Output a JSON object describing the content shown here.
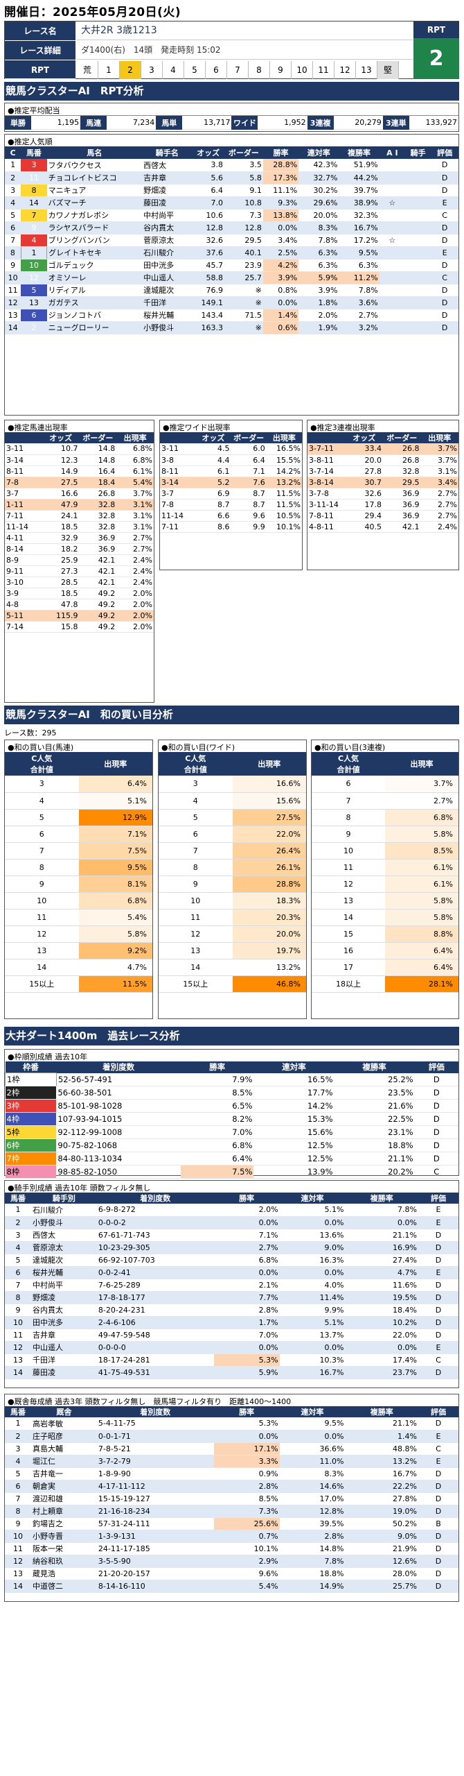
{
  "header": {
    "date": "開催日：2025年05月20日(火)"
  },
  "race": {
    "labels": [
      "レース名",
      "レース詳細",
      "RPT"
    ],
    "name": "大井2R 3歳1213",
    "detail": "ダ1400(右)　14頭　発走時刻 15:02",
    "cells": [
      "荒",
      "1",
      "2",
      "3",
      "4",
      "5",
      "6",
      "7",
      "8",
      "9",
      "10",
      "11",
      "12",
      "13",
      "堅"
    ],
    "rpt_label": "RPT",
    "rpt_value": "2",
    "accent": "#1e8449"
  },
  "sections": {
    "analysis": "競馬クラスターAI　RPT分析",
    "buy": "競馬クラスターAI　和の買い目分析",
    "past": "大井ダート1400m　過去レース分析"
  },
  "payout": {
    "title": "●推定平均配当",
    "items": [
      [
        "単勝",
        "1,195"
      ],
      [
        "馬連",
        "7,234"
      ],
      [
        "馬単",
        "13,717"
      ],
      [
        "ワイド",
        "1,952"
      ],
      [
        "3連複",
        "20,279"
      ],
      [
        "3連単",
        "133,927"
      ]
    ]
  },
  "popularity": {
    "title": "●推定人気順",
    "headers": [
      "C",
      "馬番",
      "馬名",
      "騎手名",
      "オッズ",
      "ボーダー",
      "勝率",
      "連対率",
      "複勝率",
      "A I",
      "騎手",
      "評価"
    ],
    "rows": [
      [
        "1",
        "3",
        "フタバウクセス",
        "西啓太",
        "3.8",
        "3.5",
        "28.8%",
        "42.3%",
        "51.9%",
        "",
        "",
        "D"
      ],
      [
        "2",
        "11",
        "チョコレイトビスコ",
        "吉井章",
        "5.6",
        "5.8",
        "17.3%",
        "32.7%",
        "44.2%",
        "",
        "",
        "D"
      ],
      [
        "3",
        "8",
        "マニキュア",
        "野畑凌",
        "6.4",
        "9.1",
        "11.1%",
        "30.2%",
        "39.7%",
        "",
        "",
        "D"
      ],
      [
        "4",
        "14",
        "バズマーチ",
        "藤田凌",
        "7.0",
        "10.8",
        "9.3%",
        "29.6%",
        "38.9%",
        "☆",
        "",
        "E"
      ],
      [
        "5",
        "7",
        "カワノナガレボシ",
        "中村尚平",
        "10.6",
        "7.3",
        "13.8%",
        "20.0%",
        "32.3%",
        "",
        "",
        "C"
      ],
      [
        "6",
        "9",
        "ラシヤスパラード",
        "谷内貫太",
        "12.8",
        "12.8",
        "0.0%",
        "8.3%",
        "16.7%",
        "",
        "",
        "D"
      ],
      [
        "7",
        "4",
        "ブリングバンバン",
        "菅原涼太",
        "32.6",
        "29.5",
        "3.4%",
        "7.8%",
        "17.2%",
        "☆",
        "",
        "D"
      ],
      [
        "8",
        "1",
        "グレイトキセキ",
        "石川駿介",
        "37.6",
        "40.1",
        "2.5%",
        "6.3%",
        "9.5%",
        "",
        "",
        "E"
      ],
      [
        "9",
        "10",
        "ゴルデュック",
        "田中洸多",
        "45.7",
        "23.9",
        "4.2%",
        "6.3%",
        "6.3%",
        "",
        "",
        "D"
      ],
      [
        "10",
        "12",
        "オミソーレ",
        "中山遥人",
        "58.8",
        "25.7",
        "3.9%",
        "5.9%",
        "11.2%",
        "",
        "",
        "C"
      ],
      [
        "11",
        "5",
        "リディアル",
        "達城龍次",
        "76.9",
        "※",
        "0.8%",
        "3.9%",
        "7.8%",
        "",
        "",
        "D"
      ],
      [
        "12",
        "13",
        "ガガテス",
        "千田洋",
        "149.1",
        "※",
        "0.0%",
        "1.8%",
        "3.6%",
        "",
        "",
        "D"
      ],
      [
        "13",
        "6",
        "ジョンノコトバ",
        "桜井光輔",
        "143.4",
        "71.5",
        "1.4%",
        "2.0%",
        "2.7%",
        "",
        "",
        "D"
      ],
      [
        "14",
        "2",
        "ニューグローリー",
        "小野俊斗",
        "163.3",
        "※",
        "0.6%",
        "1.9%",
        "3.2%",
        "",
        "",
        "D"
      ]
    ]
  },
  "umaren": {
    "title": "●推定馬連出現率",
    "headers": [
      "",
      "オッズ",
      "ボーダー",
      "出現率"
    ],
    "rows": [
      [
        "3-11",
        "10.7",
        "14.8",
        "6.8%"
      ],
      [
        "3-14",
        "12.3",
        "14.8",
        "6.8%"
      ],
      [
        "8-11",
        "14.9",
        "16.4",
        "6.1%"
      ],
      [
        "7-8",
        "27.5",
        "18.4",
        "5.4%"
      ],
      [
        "3-7",
        "16.6",
        "26.8",
        "3.7%"
      ],
      [
        "1-11",
        "47.9",
        "32.8",
        "3.1%"
      ],
      [
        "7-11",
        "24.1",
        "32.8",
        "3.1%"
      ],
      [
        "11-14",
        "18.5",
        "32.8",
        "3.1%"
      ],
      [
        "4-11",
        "32.9",
        "36.9",
        "2.7%"
      ],
      [
        "8-14",
        "18.2",
        "36.9",
        "2.7%"
      ],
      [
        "8-9",
        "25.9",
        "42.1",
        "2.4%"
      ],
      [
        "9-11",
        "27.3",
        "42.1",
        "2.4%"
      ],
      [
        "3-10",
        "28.5",
        "42.1",
        "2.4%"
      ],
      [
        "3-9",
        "18.5",
        "49.2",
        "2.0%"
      ],
      [
        "4-8",
        "47.8",
        "49.2",
        "2.0%"
      ],
      [
        "5-11",
        "115.9",
        "49.2",
        "2.0%"
      ],
      [
        "7-14",
        "15.8",
        "49.2",
        "2.0%"
      ]
    ]
  },
  "wide": {
    "title": "●推定ワイド出現率",
    "headers": [
      "",
      "オッズ",
      "ボーダー",
      "出現率"
    ],
    "rows": [
      [
        "3-11",
        "4.5",
        "6.0",
        "16.5%"
      ],
      [
        "3-8",
        "4.4",
        "6.4",
        "15.5%"
      ],
      [
        "8-11",
        "6.1",
        "7.1",
        "14.2%"
      ],
      [
        "3-14",
        "5.2",
        "7.6",
        "13.2%"
      ],
      [
        "3-7",
        "6.9",
        "8.7",
        "11.5%"
      ],
      [
        "7-8",
        "8.7",
        "8.7",
        "11.5%"
      ],
      [
        "11-14",
        "6.6",
        "9.6",
        "10.5%"
      ],
      [
        "7-11",
        "8.6",
        "9.9",
        "10.1%"
      ]
    ]
  },
  "sanrenpuku": {
    "title": "●推定3連複出現率",
    "headers": [
      "",
      "オッズ",
      "ボーダー",
      "出現率"
    ],
    "rows": [
      [
        "3-7-11",
        "33.4",
        "26.8",
        "3.7%"
      ],
      [
        "3-8-11",
        "20.0",
        "26.8",
        "3.7%"
      ],
      [
        "3-7-14",
        "27.8",
        "32.8",
        "3.1%"
      ],
      [
        "3-8-14",
        "30.7",
        "29.5",
        "3.4%"
      ],
      [
        "3-7-8",
        "32.6",
        "36.9",
        "2.7%"
      ],
      [
        "3-11-14",
        "17.8",
        "36.9",
        "2.7%"
      ],
      [
        "7-8-11",
        "29.4",
        "36.9",
        "2.7%"
      ],
      [
        "4-8-11",
        "40.5",
        "42.1",
        "2.4%"
      ]
    ]
  },
  "races_count": "レース数：295",
  "sum_umaren": {
    "title": "●和の買い目(馬連)",
    "headers": [
      "C人気\n合計値",
      "出現率"
    ],
    "rows": [
      [
        "3",
        "6.4%"
      ],
      [
        "4",
        "5.1%"
      ],
      [
        "5",
        "12.9%"
      ],
      [
        "6",
        "7.1%"
      ],
      [
        "7",
        "7.5%"
      ],
      [
        "8",
        "9.5%"
      ],
      [
        "9",
        "8.1%"
      ],
      [
        "10",
        "6.8%"
      ],
      [
        "11",
        "5.4%"
      ],
      [
        "12",
        "5.8%"
      ],
      [
        "13",
        "9.2%"
      ],
      [
        "14",
        "4.7%"
      ],
      [
        "15以上",
        "11.5%"
      ]
    ]
  },
  "sum_wide": {
    "title": "●和の買い目(ワイド)",
    "headers": [
      "C人気\n合計値",
      "出現率"
    ],
    "rows": [
      [
        "3",
        "16.6%"
      ],
      [
        "4",
        "15.6%"
      ],
      [
        "5",
        "27.5%"
      ],
      [
        "6",
        "22.0%"
      ],
      [
        "7",
        "26.4%"
      ],
      [
        "8",
        "26.1%"
      ],
      [
        "9",
        "28.8%"
      ],
      [
        "10",
        "18.3%"
      ],
      [
        "11",
        "20.3%"
      ],
      [
        "12",
        "20.0%"
      ],
      [
        "13",
        "19.7%"
      ],
      [
        "14",
        "13.2%"
      ],
      [
        "15以上",
        "46.8%"
      ]
    ]
  },
  "sum_3renpuku": {
    "title": "●和の買い目(3連複)",
    "headers": [
      "C人気\n合計値",
      "出現率"
    ],
    "rows": [
      [
        "6",
        "3.7%"
      ],
      [
        "7",
        "2.7%"
      ],
      [
        "8",
        "6.8%"
      ],
      [
        "9",
        "5.8%"
      ],
      [
        "10",
        "8.5%"
      ],
      [
        "11",
        "6.1%"
      ],
      [
        "12",
        "6.1%"
      ],
      [
        "13",
        "5.8%"
      ],
      [
        "14",
        "5.8%"
      ],
      [
        "15",
        "8.8%"
      ],
      [
        "16",
        "6.4%"
      ],
      [
        "17",
        "6.4%"
      ],
      [
        "18以上",
        "28.1%"
      ]
    ]
  },
  "waku": {
    "title": "●枠順別成績 過去10年",
    "headers": [
      "枠番",
      "着別度数",
      "勝率",
      "連対率",
      "複勝率",
      "評価"
    ],
    "rows": [
      [
        "1枠",
        "52-56-57-491",
        "7.9%",
        "16.5%",
        "25.2%",
        "D"
      ],
      [
        "2枠",
        "56-60-38-501",
        "8.5%",
        "17.7%",
        "23.5%",
        "D"
      ],
      [
        "3枠",
        "85-101-98-1028",
        "6.5%",
        "14.2%",
        "21.6%",
        "D"
      ],
      [
        "4枠",
        "107-93-94-1015",
        "8.2%",
        "15.3%",
        "22.5%",
        "D"
      ],
      [
        "5枠",
        "92-112-99-1008",
        "7.0%",
        "15.6%",
        "23.1%",
        "D"
      ],
      [
        "6枠",
        "90-75-82-1068",
        "6.8%",
        "12.5%",
        "18.8%",
        "D"
      ],
      [
        "7枠",
        "84-80-113-1034",
        "6.4%",
        "12.5%",
        "21.1%",
        "D"
      ],
      [
        "8枠",
        "98-85-82-1050",
        "7.5%",
        "13.9%",
        "20.2%",
        "C"
      ]
    ]
  },
  "jockey": {
    "title": "●騎手別成績 過去10年 頭数フィルタ無し",
    "headers": [
      "馬番",
      "騎手別",
      "着別度数",
      "勝率",
      "連対率",
      "複勝率",
      "評価"
    ],
    "rows": [
      [
        "1",
        "石川駿介",
        "6-9-8-272",
        "2.0%",
        "5.1%",
        "7.8%",
        "E"
      ],
      [
        "2",
        "小野俊斗",
        "0-0-0-2",
        "0.0%",
        "0.0%",
        "0.0%",
        "E"
      ],
      [
        "3",
        "西啓太",
        "67-61-71-743",
        "7.1%",
        "13.6%",
        "21.1%",
        "D"
      ],
      [
        "4",
        "菅原涼太",
        "10-23-29-305",
        "2.7%",
        "9.0%",
        "16.9%",
        "D"
      ],
      [
        "5",
        "達城龍次",
        "66-92-107-703",
        "6.8%",
        "16.3%",
        "27.4%",
        "D"
      ],
      [
        "6",
        "桜井光輔",
        "0-0-2-41",
        "0.0%",
        "0.0%",
        "4.7%",
        "E"
      ],
      [
        "7",
        "中村尚平",
        "7-6-25-289",
        "2.1%",
        "4.0%",
        "11.6%",
        "D"
      ],
      [
        "8",
        "野畑凌",
        "17-8-18-177",
        "7.7%",
        "11.4%",
        "19.5%",
        "D"
      ],
      [
        "9",
        "谷内貫太",
        "8-20-24-231",
        "2.8%",
        "9.9%",
        "18.4%",
        "D"
      ],
      [
        "10",
        "田中洸多",
        "2-4-6-106",
        "1.7%",
        "5.1%",
        "10.2%",
        "D"
      ],
      [
        "11",
        "吉井章",
        "49-47-59-548",
        "7.0%",
        "13.7%",
        "22.0%",
        "D"
      ],
      [
        "12",
        "中山遥人",
        "0-0-0-0",
        "0.0%",
        "0.0%",
        "0.0%",
        "E"
      ],
      [
        "13",
        "千田洋",
        "18-17-24-281",
        "5.3%",
        "10.3%",
        "17.4%",
        "C"
      ],
      [
        "14",
        "藤田凌",
        "41-75-49-531",
        "5.9%",
        "16.7%",
        "23.7%",
        "D"
      ]
    ]
  },
  "trainer": {
    "title": "●厩舎毎成績 過去3年 頭数フィルタ無し　競馬場フィルタ有り　距離1400～1400",
    "headers": [
      "馬番",
      "厩舎",
      "着別度数",
      "勝率",
      "連対率",
      "複勝率",
      "評価"
    ],
    "rows": [
      [
        "1",
        "高岩孝敏",
        "5-4-11-75",
        "5.3%",
        "9.5%",
        "21.1%",
        "D"
      ],
      [
        "2",
        "庄子昭彦",
        "0-0-1-71",
        "0.0%",
        "0.0%",
        "1.4%",
        "E"
      ],
      [
        "3",
        "真島大輔",
        "7-8-5-21",
        "17.1%",
        "36.6%",
        "48.8%",
        "C"
      ],
      [
        "4",
        "堀江仁",
        "3-7-2-79",
        "3.3%",
        "11.0%",
        "13.2%",
        "E"
      ],
      [
        "5",
        "吉井竜一",
        "1-8-9-90",
        "0.9%",
        "8.3%",
        "16.7%",
        "D"
      ],
      [
        "6",
        "朝倉実",
        "4-17-11-112",
        "2.8%",
        "14.6%",
        "22.2%",
        "D"
      ],
      [
        "7",
        "渡辺和雄",
        "15-15-19-127",
        "8.5%",
        "17.0%",
        "27.8%",
        "D"
      ],
      [
        "8",
        "村上頼章",
        "21-16-18-234",
        "7.3%",
        "12.8%",
        "19.0%",
        "D"
      ],
      [
        "9",
        "釣場吉之",
        "57-31-24-111",
        "25.6%",
        "39.5%",
        "50.2%",
        "B"
      ],
      [
        "10",
        "小野寺晋",
        "1-3-9-131",
        "0.7%",
        "2.8%",
        "9.0%",
        "D"
      ],
      [
        "11",
        "阪本一栄",
        "24-11-17-185",
        "10.1%",
        "14.8%",
        "21.9%",
        "D"
      ],
      [
        "12",
        "納谷和玖",
        "3-5-5-90",
        "2.9%",
        "7.8%",
        "12.6%",
        "D"
      ],
      [
        "13",
        "蔵見浩",
        "21-20-20-157",
        "9.6%",
        "18.8%",
        "28.0%",
        "D"
      ],
      [
        "14",
        "中道啓二",
        "8-14-16-110",
        "5.4%",
        "14.9%",
        "25.7%",
        "D"
      ]
    ]
  }
}
